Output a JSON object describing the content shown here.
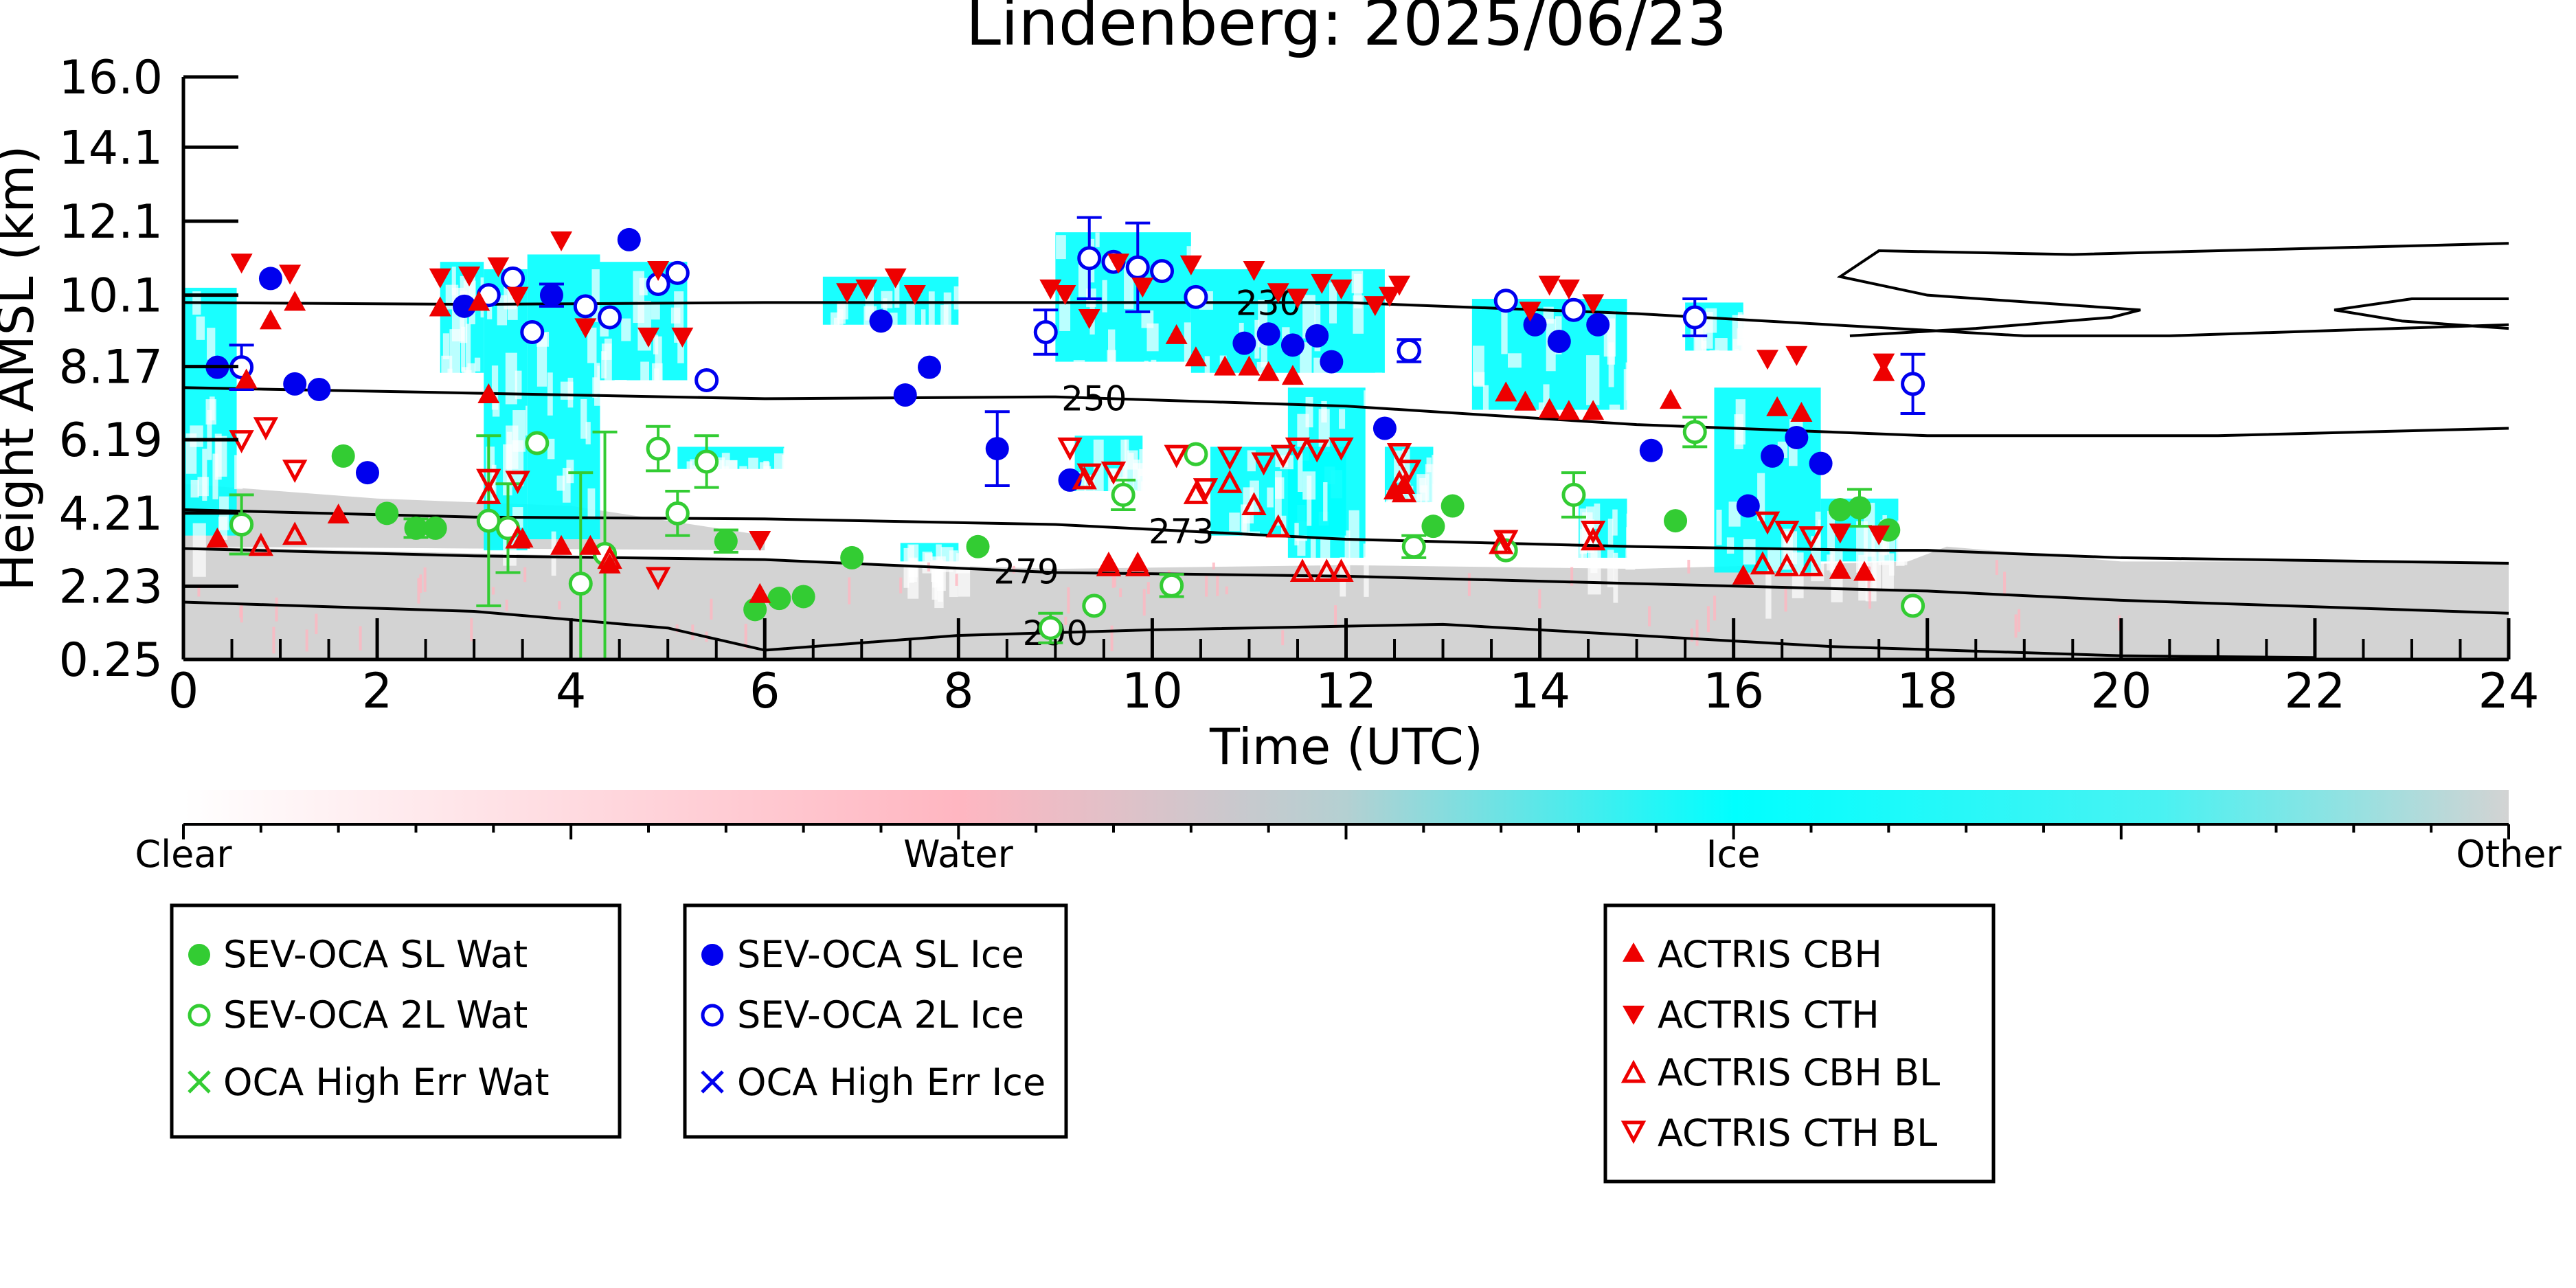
{
  "chart_data": {
    "type": "scatter",
    "title": "Lindenberg: 2025/06/23",
    "xlabel": "Time (UTC)",
    "ylabel": "Height AMSL (km)",
    "xlim": [
      0,
      24
    ],
    "ylim": [
      0.25,
      16.0
    ],
    "x_ticks": [
      "0",
      "2",
      "4",
      "6",
      "8",
      "10",
      "12",
      "14",
      "16",
      "18",
      "20",
      "22",
      "24"
    ],
    "y_ticks": [
      "0.25",
      "2.23",
      "4.21",
      "6.19",
      "8.17",
      "10.1",
      "12.1",
      "14.1",
      "16.0"
    ],
    "colorbar": {
      "labels": [
        "Clear",
        "Water",
        "Ice",
        "Other"
      ],
      "colors": [
        "#ffffff",
        "#ffb6c1",
        "#00ffff",
        "#d3d3d3"
      ]
    },
    "background_colors": {
      "ice": "#00ffff",
      "other": "#d3d3d3",
      "water": "#ffb6c1"
    },
    "contours": [
      {
        "label": "230",
        "label_x": 11.2,
        "points": [
          [
            0,
            9.9
          ],
          [
            3,
            9.85
          ],
          [
            6,
            9.9
          ],
          [
            9,
            9.9
          ],
          [
            12,
            9.9
          ],
          [
            15,
            9.6
          ],
          [
            19,
            9.0
          ],
          [
            20.5,
            9.0
          ],
          [
            24,
            9.3
          ]
        ]
      },
      {
        "label": "250",
        "label_x": 9.4,
        "points": [
          [
            0,
            7.6
          ],
          [
            3,
            7.45
          ],
          [
            6,
            7.3
          ],
          [
            9,
            7.35
          ],
          [
            12,
            7.1
          ],
          [
            15,
            6.6
          ],
          [
            18,
            6.3
          ],
          [
            21,
            6.3
          ],
          [
            24,
            6.5
          ]
        ]
      },
      {
        "label": "273",
        "label_x": 10.3,
        "points": [
          [
            0,
            4.3
          ],
          [
            3,
            4.1
          ],
          [
            6,
            4.05
          ],
          [
            9,
            3.9
          ],
          [
            12,
            3.5
          ],
          [
            15,
            3.3
          ],
          [
            17.5,
            3.2
          ],
          [
            18,
            3.2
          ],
          [
            20,
            3.0
          ],
          [
            24,
            2.85
          ]
        ]
      },
      {
        "label": "279",
        "label_x": 8.7,
        "points": [
          [
            0,
            3.25
          ],
          [
            3,
            3.05
          ],
          [
            6,
            2.95
          ],
          [
            9,
            2.6
          ],
          [
            12,
            2.5
          ],
          [
            15,
            2.3
          ],
          [
            18,
            2.1
          ],
          [
            20,
            1.85
          ],
          [
            24,
            1.5
          ]
        ]
      },
      {
        "label": "290",
        "label_x": 9.0,
        "points": [
          [
            0,
            1.8
          ],
          [
            3,
            1.55
          ],
          [
            5,
            1.1
          ],
          [
            6,
            0.5
          ],
          [
            8,
            0.9
          ],
          [
            10,
            1.05
          ],
          [
            13,
            1.2
          ],
          [
            17,
            0.6
          ],
          [
            20,
            0.35
          ],
          [
            22,
            0.3
          ]
        ]
      }
    ],
    "series": [
      {
        "name": "SEV-OCA SL Wat",
        "marker": "filled-circle",
        "color": "#33cc33",
        "points": [
          [
            1.65,
            5.75
          ],
          [
            2.1,
            4.2
          ],
          [
            2.4,
            3.8
          ],
          [
            2.6,
            3.8
          ],
          [
            5.6,
            3.45
          ],
          [
            5.9,
            1.6
          ],
          [
            6.15,
            1.9
          ],
          [
            6.4,
            1.95
          ],
          [
            6.9,
            3.0
          ],
          [
            8.2,
            3.3
          ],
          [
            12.9,
            3.85
          ],
          [
            13.1,
            4.4
          ],
          [
            15.4,
            4.0
          ],
          [
            17.1,
            4.3
          ],
          [
            17.3,
            4.35
          ],
          [
            17.6,
            3.75
          ]
        ],
        "err": [
          0,
          0,
          0.25,
          0,
          0.3,
          0,
          0,
          0,
          0,
          0,
          0,
          0,
          0,
          0,
          0.5,
          0
        ]
      },
      {
        "name": "SEV-OCA 2L Wat",
        "marker": "open-circle",
        "color": "#33cc33",
        "points": [
          [
            0.6,
            3.9
          ],
          [
            3.15,
            4.0
          ],
          [
            3.35,
            3.8
          ],
          [
            3.65,
            6.1
          ],
          [
            4.1,
            2.3
          ],
          [
            4.35,
            3.1
          ],
          [
            4.9,
            5.95
          ],
          [
            5.1,
            4.2
          ],
          [
            5.4,
            5.6
          ],
          [
            8.95,
            1.1
          ],
          [
            9.4,
            1.7
          ],
          [
            9.7,
            4.7
          ],
          [
            10.2,
            2.25
          ],
          [
            10.45,
            5.8
          ],
          [
            12.7,
            3.3
          ],
          [
            13.65,
            3.2
          ],
          [
            14.35,
            4.7
          ],
          [
            15.6,
            6.4
          ],
          [
            17.85,
            1.7
          ]
        ],
        "err": [
          0.8,
          2.3,
          1.2,
          0,
          3.0,
          3.3,
          0.6,
          0.6,
          0.7,
          0.4,
          0,
          0.4,
          0.3,
          0,
          0.3,
          0,
          0.6,
          0.4,
          0
        ]
      },
      {
        "name": "OCA High Err Wat",
        "marker": "cross",
        "color": "#33cc33",
        "points": []
      },
      {
        "name": "SEV-OCA SL Ice",
        "marker": "filled-circle",
        "color": "#0000ee",
        "points": [
          [
            0.35,
            8.15
          ],
          [
            0.9,
            10.55
          ],
          [
            1.15,
            7.7
          ],
          [
            1.4,
            7.55
          ],
          [
            1.9,
            5.3
          ],
          [
            2.9,
            9.8
          ],
          [
            3.8,
            10.1
          ],
          [
            4.6,
            11.6
          ],
          [
            7.2,
            9.4
          ],
          [
            7.45,
            7.4
          ],
          [
            7.7,
            8.15
          ],
          [
            8.4,
            5.95
          ],
          [
            9.15,
            5.1
          ],
          [
            10.95,
            8.8
          ],
          [
            11.2,
            9.05
          ],
          [
            11.45,
            8.75
          ],
          [
            11.7,
            9.0
          ],
          [
            11.85,
            8.3
          ],
          [
            12.4,
            6.5
          ],
          [
            13.95,
            9.3
          ],
          [
            14.2,
            8.85
          ],
          [
            14.6,
            9.3
          ],
          [
            15.15,
            5.9
          ],
          [
            16.15,
            4.4
          ],
          [
            16.4,
            5.75
          ],
          [
            16.65,
            6.25
          ],
          [
            16.9,
            5.55
          ]
        ],
        "err": [
          0,
          0,
          0,
          0,
          0,
          0,
          0.3,
          0,
          0,
          0,
          0,
          1.0,
          0,
          0,
          0,
          0,
          0,
          0,
          0,
          0,
          0,
          0,
          0,
          0,
          0,
          0,
          0
        ]
      },
      {
        "name": "SEV-OCA 2L Ice",
        "marker": "open-circle",
        "color": "#0000ee",
        "points": [
          [
            0.6,
            8.15
          ],
          [
            3.15,
            10.1
          ],
          [
            3.4,
            10.55
          ],
          [
            3.6,
            9.1
          ],
          [
            4.15,
            9.8
          ],
          [
            4.4,
            9.5
          ],
          [
            4.9,
            10.4
          ],
          [
            5.1,
            10.7
          ],
          [
            5.4,
            7.8
          ],
          [
            8.9,
            9.1
          ],
          [
            9.35,
            11.1
          ],
          [
            9.6,
            11.0
          ],
          [
            9.85,
            10.85
          ],
          [
            10.1,
            10.75
          ],
          [
            10.45,
            10.05
          ],
          [
            12.65,
            8.6
          ],
          [
            13.65,
            9.95
          ],
          [
            14.35,
            9.7
          ],
          [
            15.6,
            9.5
          ],
          [
            17.85,
            7.7
          ]
        ],
        "err": [
          0.6,
          0,
          0,
          0,
          0,
          0,
          0,
          0,
          0,
          0.6,
          1.1,
          0,
          1.2,
          0,
          0,
          0.3,
          0,
          0,
          0.5,
          0.8
        ]
      },
      {
        "name": "OCA High Err Ice",
        "marker": "cross",
        "color": "#0000ee",
        "points": []
      },
      {
        "name": "ACTRIS CBH",
        "marker": "triangle-up",
        "color": "#ee0000",
        "points": [
          [
            0.35,
            3.5
          ],
          [
            0.65,
            7.8
          ],
          [
            0.9,
            9.4
          ],
          [
            1.15,
            9.9
          ],
          [
            1.6,
            4.15
          ],
          [
            2.65,
            9.75
          ],
          [
            3.05,
            9.9
          ],
          [
            3.15,
            7.4
          ],
          [
            3.5,
            3.5
          ],
          [
            3.9,
            3.3
          ],
          [
            4.2,
            3.3
          ],
          [
            4.4,
            2.8
          ],
          [
            5.95,
            2.0
          ],
          [
            9.55,
            2.85
          ],
          [
            9.85,
            2.85
          ],
          [
            10.25,
            9.0
          ],
          [
            10.45,
            8.4
          ],
          [
            10.75,
            8.15
          ],
          [
            11.0,
            8.15
          ],
          [
            11.2,
            8.0
          ],
          [
            11.45,
            7.9
          ],
          [
            12.5,
            4.8
          ],
          [
            12.6,
            4.95
          ],
          [
            13.65,
            7.45
          ],
          [
            13.85,
            7.2
          ],
          [
            14.1,
            7.0
          ],
          [
            14.3,
            6.95
          ],
          [
            14.55,
            6.95
          ],
          [
            15.35,
            7.25
          ],
          [
            16.1,
            2.5
          ],
          [
            16.45,
            7.05
          ],
          [
            16.7,
            6.9
          ],
          [
            17.1,
            2.65
          ],
          [
            17.35,
            2.6
          ],
          [
            17.55,
            8.0
          ]
        ]
      },
      {
        "name": "ACTRIS CTH",
        "marker": "triangle-down",
        "color": "#ee0000",
        "points": [
          [
            0.6,
            11.0
          ],
          [
            1.1,
            10.7
          ],
          [
            2.65,
            10.6
          ],
          [
            2.95,
            10.65
          ],
          [
            3.25,
            10.9
          ],
          [
            3.45,
            10.1
          ],
          [
            3.9,
            11.6
          ],
          [
            4.15,
            9.25
          ],
          [
            4.8,
            9.0
          ],
          [
            4.9,
            10.8
          ],
          [
            5.15,
            9.0
          ],
          [
            5.95,
            3.5
          ],
          [
            6.85,
            10.2
          ],
          [
            7.05,
            10.3
          ],
          [
            7.35,
            10.6
          ],
          [
            7.55,
            10.15
          ],
          [
            8.95,
            10.3
          ],
          [
            9.1,
            10.15
          ],
          [
            9.35,
            9.5
          ],
          [
            9.65,
            11.0
          ],
          [
            9.9,
            10.35
          ],
          [
            10.4,
            10.95
          ],
          [
            11.05,
            10.8
          ],
          [
            11.3,
            10.2
          ],
          [
            11.5,
            10.05
          ],
          [
            11.75,
            10.45
          ],
          [
            11.95,
            10.3
          ],
          [
            12.3,
            9.85
          ],
          [
            12.45,
            10.1
          ],
          [
            12.55,
            10.4
          ],
          [
            13.9,
            9.7
          ],
          [
            14.1,
            10.4
          ],
          [
            14.3,
            10.3
          ],
          [
            14.55,
            9.9
          ],
          [
            16.35,
            8.4
          ],
          [
            16.65,
            8.5
          ],
          [
            17.1,
            3.7
          ],
          [
            17.5,
            3.65
          ],
          [
            17.55,
            8.3
          ]
        ]
      },
      {
        "name": "ACTRIS CBH BL",
        "marker": "open-triangle-up",
        "color": "#ee0000",
        "points": [
          [
            0.8,
            3.3
          ],
          [
            1.15,
            3.6
          ],
          [
            3.15,
            4.7
          ],
          [
            3.45,
            3.5
          ],
          [
            4.4,
            2.95
          ],
          [
            9.3,
            5.1
          ],
          [
            9.55,
            2.75
          ],
          [
            9.85,
            2.75
          ],
          [
            10.45,
            4.7
          ],
          [
            10.8,
            5.0
          ],
          [
            11.05,
            4.4
          ],
          [
            11.3,
            3.8
          ],
          [
            11.55,
            2.6
          ],
          [
            11.8,
            2.6
          ],
          [
            11.95,
            2.6
          ],
          [
            12.55,
            5.0
          ],
          [
            12.6,
            4.75
          ],
          [
            13.6,
            3.35
          ],
          [
            14.55,
            3.45
          ],
          [
            16.3,
            2.8
          ],
          [
            16.55,
            2.75
          ],
          [
            16.8,
            2.75
          ]
        ]
      },
      {
        "name": "ACTRIS CTH BL",
        "marker": "open-triangle-down",
        "color": "#ee0000",
        "points": [
          [
            0.6,
            6.2
          ],
          [
            0.85,
            6.55
          ],
          [
            1.15,
            5.4
          ],
          [
            3.15,
            5.15
          ],
          [
            3.45,
            5.1
          ],
          [
            4.9,
            2.5
          ],
          [
            9.15,
            6.0
          ],
          [
            9.35,
            5.3
          ],
          [
            9.6,
            5.35
          ],
          [
            10.25,
            5.8
          ],
          [
            10.55,
            4.9
          ],
          [
            10.8,
            5.75
          ],
          [
            11.15,
            5.6
          ],
          [
            11.35,
            5.8
          ],
          [
            11.5,
            6.0
          ],
          [
            11.7,
            5.95
          ],
          [
            11.95,
            6.0
          ],
          [
            12.55,
            5.85
          ],
          [
            12.65,
            5.4
          ],
          [
            13.65,
            3.5
          ],
          [
            14.55,
            3.75
          ],
          [
            16.35,
            4.0
          ],
          [
            16.55,
            3.75
          ],
          [
            16.8,
            3.6
          ]
        ]
      }
    ]
  },
  "legends": [
    {
      "items": [
        "SEV-OCA SL Wat",
        "SEV-OCA 2L Wat",
        "OCA High Err Wat"
      ]
    },
    {
      "items": [
        "SEV-OCA SL Ice",
        "SEV-OCA 2L Ice",
        "OCA High Err Ice"
      ]
    },
    {
      "items": [
        "ACTRIS CBH",
        "ACTRIS CTH",
        "ACTRIS CBH BL",
        "ACTRIS CTH BL"
      ]
    }
  ]
}
